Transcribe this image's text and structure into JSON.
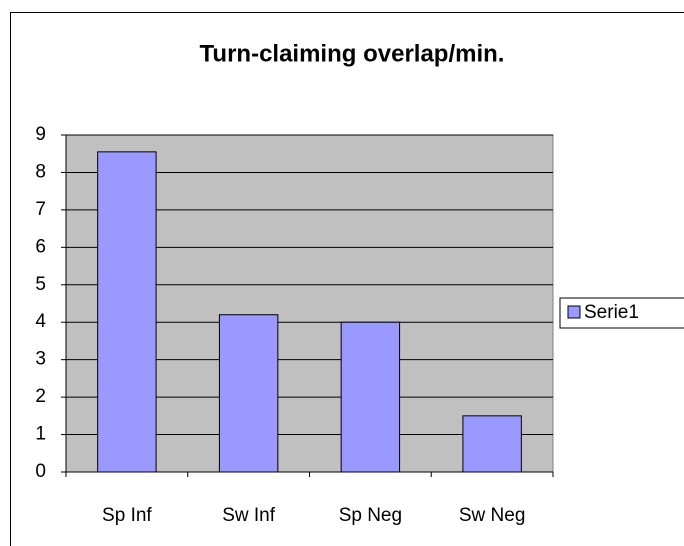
{
  "chart_data": {
    "type": "bar",
    "title": "Turn-claiming overlap/min.",
    "categories": [
      "Sp Inf",
      "Sw Inf",
      "Sp Neg",
      "Sw Neg"
    ],
    "series": [
      {
        "name": "Serie1",
        "color": "#9999ff",
        "values": [
          8.55,
          4.2,
          4.0,
          1.5
        ]
      }
    ],
    "ylim": [
      0,
      9
    ],
    "yticks": [
      0,
      1,
      2,
      3,
      4,
      5,
      6,
      7,
      8,
      9
    ],
    "grid": true,
    "legend": "right"
  }
}
